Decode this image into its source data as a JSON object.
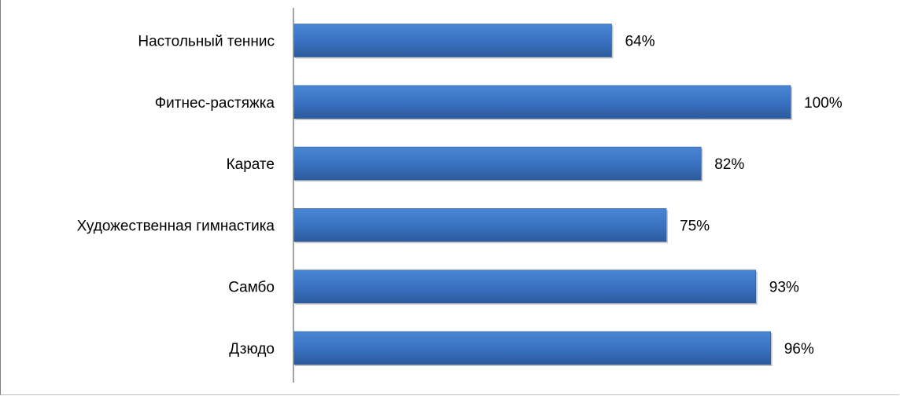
{
  "chart_data": {
    "type": "bar",
    "orientation": "horizontal",
    "categories": [
      "Настольный теннис",
      "Фитнес-растяжка",
      "Карате",
      "Художественная гимнастика",
      "Самбо",
      "Дзюдо"
    ],
    "values": [
      64,
      100,
      82,
      75,
      93,
      96
    ],
    "value_labels": [
      "64%",
      "100%",
      "82%",
      "75%",
      "93%",
      "96%"
    ],
    "title": "",
    "xlabel": "",
    "ylabel": "",
    "xlim": [
      0,
      100
    ],
    "grid": false,
    "legend": "none",
    "bar_color": "#3a73c2",
    "bar_color_dark": "#2c5a9c",
    "axis_color": "#868686"
  }
}
